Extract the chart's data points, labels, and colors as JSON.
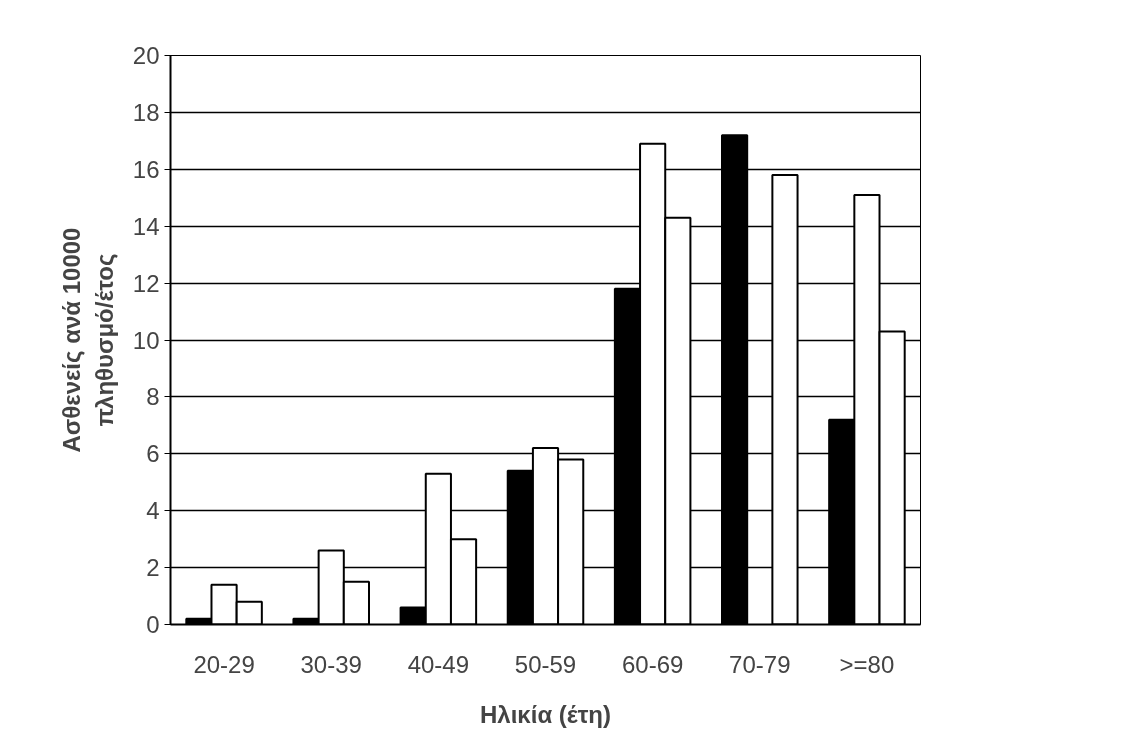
{
  "chart_data": {
    "type": "bar",
    "xlabel": "Ηλικία (έτη)",
    "ylabel": "Ασθενείς ανά 10000\nπληθυσμό/έτος",
    "categories": [
      "20-29",
      "30-39",
      "40-49",
      "50-59",
      "60-69",
      "70-79",
      ">=80"
    ],
    "series": [
      {
        "color": "#000000",
        "values": [
          0.2,
          0.2,
          0.6,
          5.4,
          11.8,
          17.2,
          7.2
        ]
      },
      {
        "color": "#ffffff",
        "values": [
          1.4,
          2.6,
          5.3,
          6.2,
          16.9,
          null,
          15.1
        ]
      },
      {
        "color": "#ffffff",
        "values": [
          0.8,
          1.5,
          3.0,
          5.8,
          14.3,
          15.8,
          10.3
        ]
      }
    ],
    "ylim": [
      0,
      20
    ],
    "yticks": [
      0,
      2,
      4,
      6,
      8,
      10,
      12,
      14,
      16,
      18,
      20
    ],
    "grid": "y"
  }
}
